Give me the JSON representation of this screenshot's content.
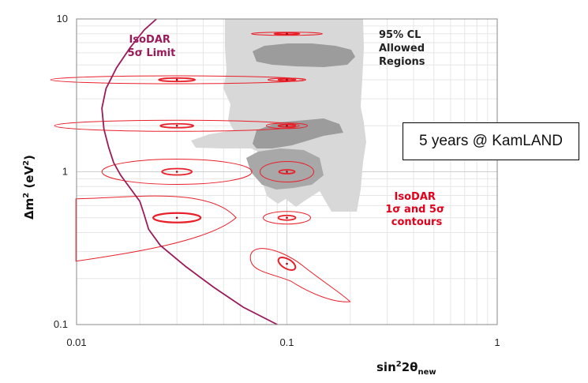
{
  "chart_data": {
    "type": "contour",
    "xlabel": {
      "base": "sin",
      "sup": "2",
      "mid": "2θ",
      "sub": "new"
    },
    "ylabel": {
      "base": "Δm",
      "sup": "2",
      "unit_open": " (eV",
      "unit_sup": "2",
      "unit_close": ")"
    },
    "x_scale": "log",
    "y_scale": "log",
    "xlim": [
      0.01,
      1
    ],
    "ylim": [
      0.1,
      10
    ],
    "x_ticks": [
      "0.01",
      "0.1",
      "1"
    ],
    "y_ticks": [
      "0.1",
      "1",
      "10"
    ],
    "grid": true,
    "annotations": {
      "limit_label_line1": "IsoDAR",
      "limit_label_line2": "5σ Limit",
      "allowed_line1": "95% CL",
      "allowed_line2": "Allowed",
      "allowed_line3": "Regions",
      "contours_line1": "IsoDAR",
      "contours_line2": "1σ and 5σ",
      "contours_line3": "contours",
      "kamland_box": "5 years @ KamLAND"
    },
    "colors": {
      "limit_curve": "#9b1b5a",
      "contours": "#e8202a",
      "allowed_light": "#d8d8d8",
      "allowed_dark": "#9c9c9c",
      "contour_label": "#e3001b",
      "limit_label": "#9b1b5a"
    },
    "limit_curve": {
      "x": [
        0.024,
        0.021,
        0.018,
        0.0155,
        0.0138,
        0.0132,
        0.0135,
        0.0142,
        0.015,
        0.0162,
        0.018,
        0.02,
        0.021,
        0.022,
        0.025,
        0.033,
        0.045,
        0.062,
        0.09
      ],
      "y": [
        10,
        8.5,
        6.5,
        4.8,
        3.5,
        2.6,
        1.9,
        1.45,
        1.15,
        0.95,
        0.78,
        0.64,
        0.52,
        0.42,
        0.33,
        0.24,
        0.175,
        0.13,
        0.1
      ]
    },
    "test_points": [
      {
        "x": 0.03,
        "y": 4.0
      },
      {
        "x": 0.03,
        "y": 2.0
      },
      {
        "x": 0.03,
        "y": 1.0
      },
      {
        "x": 0.03,
        "y": 0.5
      },
      {
        "x": 0.1,
        "y": 8.0
      },
      {
        "x": 0.1,
        "y": 4.0
      },
      {
        "x": 0.1,
        "y": 2.0
      },
      {
        "x": 0.1,
        "y": 1.0
      },
      {
        "x": 0.1,
        "y": 0.5
      },
      {
        "x": 0.1,
        "y": 0.25
      }
    ]
  }
}
